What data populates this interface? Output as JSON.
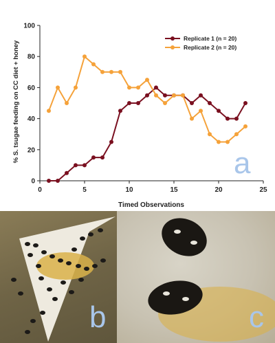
{
  "chart_data": {
    "type": "line",
    "title": "",
    "xlabel": "Timed Observations",
    "ylabel": "% S. tsugae feeding on CC diet + honey",
    "xlim": [
      0,
      25
    ],
    "ylim": [
      0,
      100
    ],
    "xticks": [
      "0",
      "5",
      "10",
      "15",
      "20",
      "25"
    ],
    "yticks": [
      "0",
      "20",
      "40",
      "60",
      "80",
      "100"
    ],
    "grid": false,
    "legend_position": "top-right",
    "panel_label": "a",
    "series": [
      {
        "name": "Replicate 1 (n = 20)",
        "color": "#7a1020",
        "marker": "circle",
        "x": [
          1,
          2,
          3,
          4,
          5,
          6,
          7,
          8,
          9,
          10,
          11,
          12,
          13,
          14,
          15,
          16,
          17,
          18,
          19,
          20,
          21,
          22,
          23
        ],
        "y": [
          0,
          0,
          5,
          10,
          10,
          15,
          15,
          25,
          45,
          50,
          50,
          55,
          60,
          55,
          55,
          55,
          50,
          55,
          50,
          45,
          40,
          40,
          50
        ]
      },
      {
        "name": "Replicate 2 (n = 20)",
        "color": "#f5a23a",
        "marker": "circle",
        "x": [
          1,
          2,
          3,
          4,
          5,
          6,
          7,
          8,
          9,
          10,
          11,
          12,
          13,
          14,
          15,
          16,
          17,
          18,
          19,
          20,
          21,
          22,
          23
        ],
        "y": [
          45,
          60,
          50,
          60,
          80,
          75,
          70,
          70,
          70,
          60,
          60,
          65,
          55,
          50,
          55,
          55,
          40,
          45,
          30,
          25,
          25,
          30,
          35
        ]
      }
    ]
  },
  "photos": {
    "b_label": "b",
    "c_label": "c"
  }
}
